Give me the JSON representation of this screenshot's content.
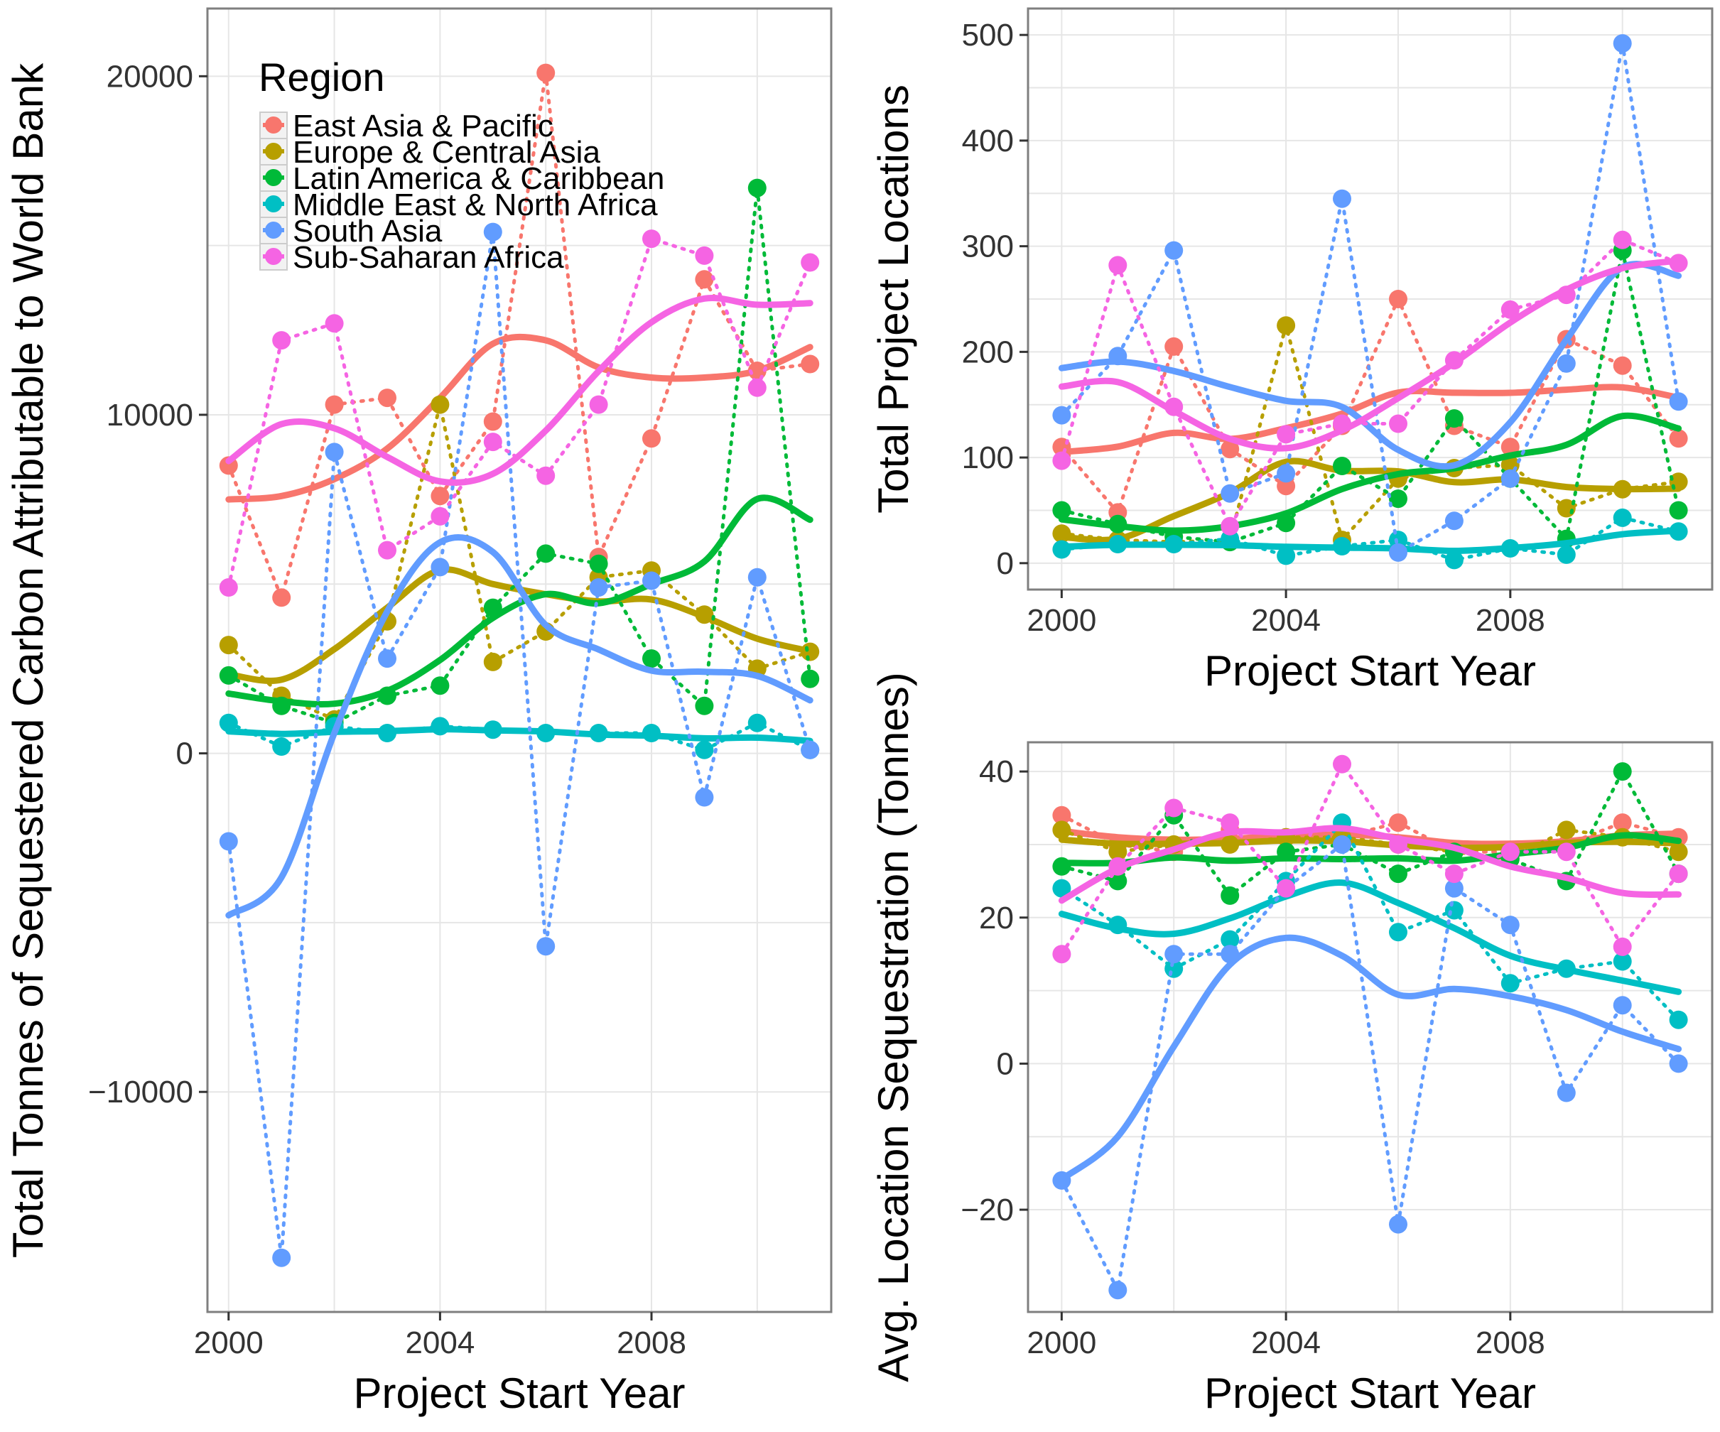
{
  "chart_data": [
    {
      "id": "total",
      "type": "line",
      "xlabel": "Project Start Year",
      "ylabel": "Total Tonnes of Sequestered Carbon Attributable to World Bank",
      "xlim": [
        1999.6,
        2011.4
      ],
      "ylim": [
        -16500,
        22000
      ],
      "xticks": [
        2000,
        2004,
        2008
      ],
      "xtick_labels": [
        "2000",
        "2004",
        "2008"
      ],
      "yticks": [
        -10000,
        0,
        10000,
        20000
      ],
      "ytick_labels": [
        "−10000",
        "0",
        "10000",
        "20000"
      ],
      "x": [
        2000,
        2001,
        2002,
        2003,
        2004,
        2005,
        2006,
        2007,
        2008,
        2009,
        2010,
        2011
      ],
      "series": [
        {
          "name": "East Asia & Pacific",
          "points": [
            8500,
            4600,
            10300,
            10500,
            7600,
            9800,
            20100,
            5800,
            9300,
            14000,
            11300,
            11500
          ],
          "smooth": [
            7500,
            7600,
            8100,
            9000,
            10500,
            12100,
            12200,
            11400,
            11100,
            11100,
            11300,
            12000
          ]
        },
        {
          "name": "Europe & Central Asia",
          "points": [
            3200,
            1700,
            1000,
            3900,
            10300,
            2700,
            3600,
            5200,
            5400,
            4100,
            2500,
            3000
          ]
        },
        {
          "name": "Latin America & Caribbean",
          "points": [
            2300,
            1400,
            900,
            1700,
            2000,
            4300,
            5900,
            5600,
            2800,
            1400,
            16700,
            2200
          ]
        },
        {
          "name": "Middle East & North Africa",
          "points": [
            900,
            200,
            800,
            600,
            800,
            700,
            600,
            600,
            600,
            100,
            900,
            100
          ]
        },
        {
          "name": "South Asia",
          "points": [
            -2600,
            -14900,
            8900,
            2800,
            5500,
            15400,
            -5700,
            4900,
            5100,
            -1300,
            5200,
            100
          ]
        },
        {
          "name": "Sub-Saharan Africa",
          "points": [
            4900,
            12200,
            12700,
            6000,
            7000,
            9200,
            8200,
            10300,
            15200,
            14700,
            10800,
            14500
          ]
        }
      ]
    },
    {
      "id": "locations",
      "type": "line",
      "xlabel": "Project Start Year",
      "ylabel": "Total Project Locations",
      "xlim": [
        1999.4,
        2011.6
      ],
      "ylim": [
        -25,
        525
      ],
      "xticks": [
        2000,
        2004,
        2008
      ],
      "xtick_labels": [
        "2000",
        "2004",
        "2008"
      ],
      "yticks": [
        0,
        100,
        200,
        300,
        400,
        500
      ],
      "ytick_labels": [
        "0",
        "100",
        "200",
        "300",
        "400",
        "500"
      ],
      "x": [
        2000,
        2001,
        2002,
        2003,
        2004,
        2005,
        2006,
        2007,
        2008,
        2009,
        2010,
        2011
      ],
      "series": [
        {
          "name": "East Asia & Pacific",
          "points": [
            110,
            48,
            205,
            108,
            73,
            130,
            250,
            130,
            110,
            212,
            187,
            118
          ]
        },
        {
          "name": "Europe & Central Asia",
          "points": [
            28,
            22,
            20,
            22,
            225,
            22,
            80,
            90,
            93,
            52,
            70,
            77
          ]
        },
        {
          "name": "Latin America & Caribbean",
          "points": [
            50,
            37,
            25,
            20,
            38,
            92,
            61,
            137,
            80,
            23,
            296,
            50
          ]
        },
        {
          "name": "Middle East & North Africa",
          "points": [
            13,
            18,
            18,
            23,
            7,
            16,
            22,
            3,
            14,
            8,
            43,
            30
          ]
        },
        {
          "name": "South Asia",
          "points": [
            140,
            196,
            296,
            66,
            85,
            345,
            10,
            40,
            80,
            189,
            492,
            153
          ]
        },
        {
          "name": "Sub-Saharan Africa",
          "points": [
            97,
            282,
            148,
            35,
            122,
            132,
            132,
            192,
            240,
            254,
            306,
            284
          ]
        }
      ]
    },
    {
      "id": "average",
      "type": "line",
      "xlabel": "Project Start Year",
      "ylabel": "Avg. Location Sequestration (Tonnes)",
      "xlim": [
        1999.4,
        2011.6
      ],
      "ylim": [
        -34,
        44
      ],
      "xticks": [
        2000,
        2004,
        2008
      ],
      "xtick_labels": [
        "2000",
        "2004",
        "2008"
      ],
      "yticks": [
        -20,
        0,
        20,
        40
      ],
      "ytick_labels": [
        "−20",
        "0",
        "20",
        "40"
      ],
      "x": [
        2000,
        2001,
        2002,
        2003,
        2004,
        2005,
        2006,
        2007,
        2008,
        2009,
        2010,
        2011
      ],
      "series": [
        {
          "name": "East Asia & Pacific",
          "points": [
            34,
            30,
            29,
            32,
            31,
            31,
            33,
            29,
            29,
            30,
            33,
            31
          ]
        },
        {
          "name": "Europe & Central Asia",
          "points": [
            32,
            29,
            30,
            30,
            31,
            31,
            30,
            29,
            28,
            32,
            31,
            29
          ]
        },
        {
          "name": "Latin America & Caribbean",
          "points": [
            27,
            25,
            34,
            23,
            29,
            30,
            26,
            29,
            28,
            25,
            40,
            26
          ]
        },
        {
          "name": "Middle East & North Africa",
          "points": [
            24,
            19,
            13,
            17,
            25,
            33,
            18,
            21,
            11,
            13,
            14,
            6
          ]
        },
        {
          "name": "South Asia",
          "points": [
            -16,
            -31,
            15,
            15,
            24,
            30,
            -22,
            24,
            19,
            -4,
            8,
            0
          ]
        },
        {
          "name": "Sub-Saharan Africa",
          "points": [
            15,
            27,
            35,
            33,
            24,
            41,
            30,
            26,
            29,
            29,
            16,
            26
          ]
        }
      ]
    }
  ],
  "legend": {
    "title": "Region",
    "position": "top-left",
    "items": [
      {
        "name": "East Asia & Pacific",
        "color": "#F8766D"
      },
      {
        "name": "Europe & Central Asia",
        "color": "#B79F00"
      },
      {
        "name": "Latin America & Caribbean",
        "color": "#00BA38"
      },
      {
        "name": "Middle East & North Africa",
        "color": "#00BFC4"
      },
      {
        "name": "South Asia",
        "color": "#619CFF"
      },
      {
        "name": "Sub-Saharan Africa",
        "color": "#F564E3"
      }
    ]
  }
}
